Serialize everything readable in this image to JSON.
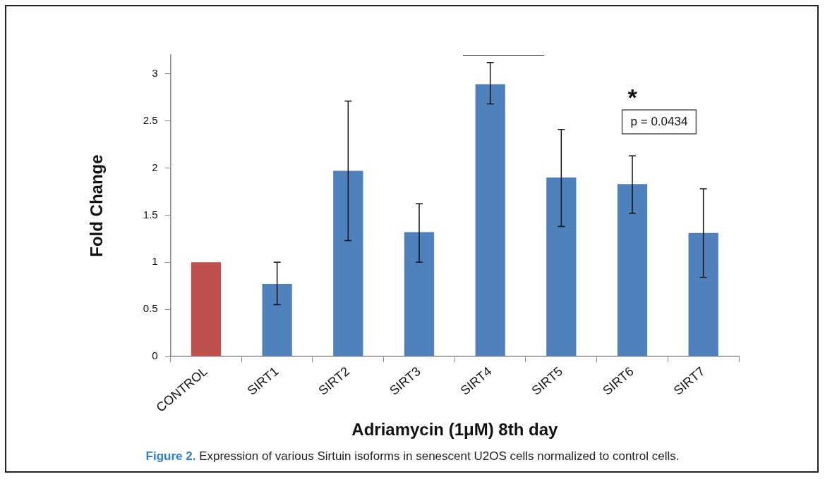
{
  "chart_data": {
    "type": "bar",
    "xlabel": "Adriamycin (1μM) 8th day",
    "ylabel": "Fold Change",
    "categories": [
      "CONTROL",
      "SIRT1",
      "SIRT2",
      "SIRT3",
      "SIRT4",
      "SIRT5",
      "SIRT6",
      "SIRT7"
    ],
    "values": [
      1.0,
      0.77,
      1.97,
      1.32,
      2.89,
      1.9,
      1.83,
      1.31
    ],
    "colors": [
      "#c0504d",
      "#4f81bd",
      "#4f81bd",
      "#4f81bd",
      "#4f81bd",
      "#4f81bd",
      "#4f81bd",
      "#4f81bd"
    ],
    "errors": [
      null,
      [
        0.55,
        1.0
      ],
      [
        1.23,
        2.71
      ],
      [
        1.0,
        1.62
      ],
      [
        2.68,
        3.12
      ],
      [
        1.38,
        2.41
      ],
      [
        1.52,
        2.13
      ],
      [
        0.84,
        1.78
      ]
    ],
    "ylim": [
      0,
      3.2
    ],
    "yticks": [
      0,
      0.5,
      1,
      1.5,
      2,
      2.5,
      3
    ],
    "grid": false,
    "legend": false,
    "annotations": [
      "*",
      "p = 0.0434",
      "Figure 2.",
      "Expression of various Sirtuin isoforms in senescent U2OS cells normalized to control cells."
    ]
  }
}
